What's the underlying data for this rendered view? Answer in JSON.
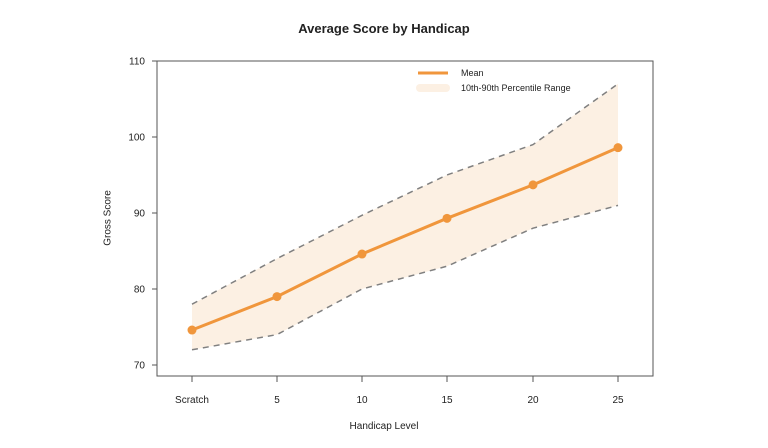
{
  "title": "Average Score by Handicap",
  "colors": {
    "mean": "#F0963C",
    "band": "#FCF0E3",
    "dashed": "#808080",
    "axis": "#555555"
  },
  "chart_data": {
    "type": "line",
    "title": "Average Score by Handicap",
    "xlabel": "Handicap Level",
    "ylabel": "Gross Score",
    "categories": [
      "Scratch",
      "5",
      "10",
      "15",
      "20",
      "25"
    ],
    "series": [
      {
        "name": "Mean",
        "values": [
          74.6,
          79.0,
          84.6,
          89.3,
          93.7,
          98.6
        ]
      },
      {
        "name": "10th Percentile",
        "values": [
          72,
          74,
          80,
          83,
          88,
          91
        ]
      },
      {
        "name": "90th Percentile",
        "values": [
          78,
          84,
          89.7,
          95,
          99,
          107
        ]
      }
    ],
    "legend": [
      "Mean",
      "10th-90th Percentile Range"
    ],
    "legend_position": "top-right",
    "ylim": [
      69,
      110.5
    ],
    "yticks": [
      70,
      80,
      90,
      100,
      110
    ],
    "grid": false
  }
}
